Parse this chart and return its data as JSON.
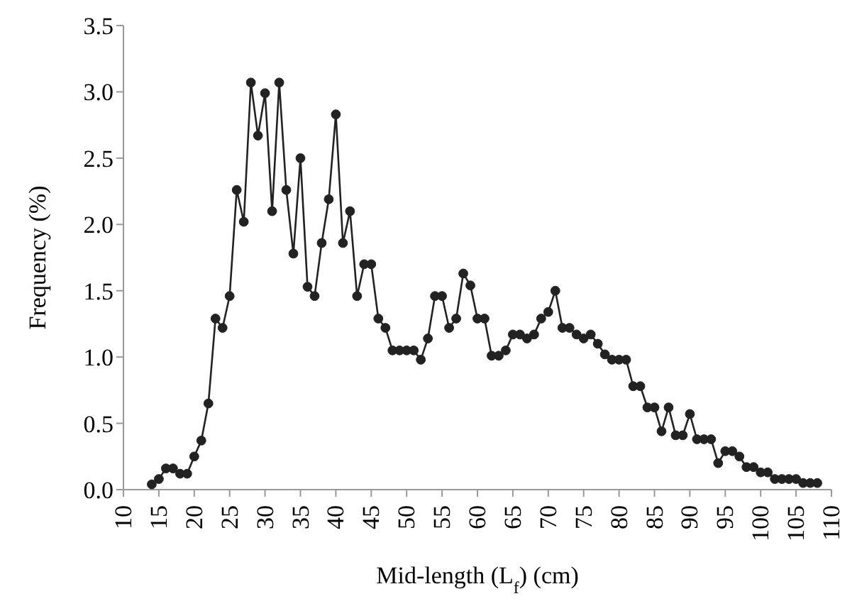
{
  "chart_data": {
    "type": "line",
    "xlabel": "Mid-length (L$_{f}$) (cm)",
    "ylabel": "Frequency (%)",
    "x": [
      14,
      15,
      16,
      17,
      18,
      19,
      20,
      21,
      22,
      23,
      24,
      25,
      26,
      27,
      28,
      29,
      30,
      31,
      32,
      33,
      34,
      35,
      36,
      37,
      38,
      39,
      40,
      41,
      42,
      43,
      44,
      45,
      46,
      47,
      48,
      49,
      50,
      51,
      52,
      53,
      54,
      55,
      56,
      57,
      58,
      59,
      60,
      61,
      62,
      63,
      64,
      65,
      66,
      67,
      68,
      69,
      70,
      71,
      72,
      73,
      74,
      75,
      76,
      77,
      78,
      79,
      80,
      81,
      82,
      83,
      84,
      85,
      86,
      87,
      88,
      89,
      90,
      91,
      92,
      93,
      94,
      95,
      96,
      97,
      98,
      99,
      100,
      101,
      102,
      103,
      104,
      105,
      106,
      107,
      108
    ],
    "series": [
      {
        "color": "#222222",
        "values": [
          0.04,
          0.08,
          0.16,
          0.16,
          0.12,
          0.12,
          0.25,
          0.37,
          0.65,
          1.29,
          1.22,
          1.46,
          2.26,
          2.02,
          3.07,
          2.67,
          2.99,
          2.1,
          3.07,
          2.26,
          1.78,
          2.5,
          1.53,
          1.46,
          1.86,
          2.19,
          2.83,
          1.86,
          2.1,
          1.46,
          1.7,
          1.7,
          1.29,
          1.22,
          1.05,
          1.05,
          1.05,
          1.05,
          0.98,
          1.14,
          1.46,
          1.46,
          1.22,
          1.29,
          1.63,
          1.54,
          1.29,
          1.29,
          1.01,
          1.01,
          1.05,
          1.17,
          1.17,
          1.14,
          1.17,
          1.29,
          1.34,
          1.5,
          1.22,
          1.22,
          1.17,
          1.14,
          1.17,
          1.1,
          1.02,
          0.98,
          0.98,
          0.98,
          0.78,
          0.78,
          0.62,
          0.62,
          0.44,
          0.62,
          0.41,
          0.41,
          0.57,
          0.38,
          0.38,
          0.38,
          0.2,
          0.29,
          0.29,
          0.25,
          0.17,
          0.17,
          0.13,
          0.13,
          0.08,
          0.08,
          0.08,
          0.08,
          0.05,
          0.05,
          0.05
        ]
      }
    ],
    "xlim": [
      10,
      110
    ],
    "xticks": [
      10,
      15,
      20,
      25,
      30,
      35,
      40,
      45,
      50,
      55,
      60,
      65,
      70,
      75,
      80,
      85,
      90,
      95,
      100,
      105,
      110
    ],
    "ylim": [
      0,
      3.5
    ],
    "yticks": [
      {
        "value": 0,
        "label": "0.0"
      },
      {
        "value": 0.5,
        "label": "0.5"
      },
      {
        "value": 1,
        "label": "1.0"
      },
      {
        "value": 1.5,
        "label": "1.5"
      },
      {
        "value": 2,
        "label": "2.0"
      },
      {
        "value": 2.5,
        "label": "2.5"
      },
      {
        "value": 3,
        "label": "3.0"
      },
      {
        "value": 3.5,
        "label": "3.5"
      }
    ],
    "grid": false,
    "legend": false,
    "marker": "circle",
    "line_style": "solid"
  }
}
